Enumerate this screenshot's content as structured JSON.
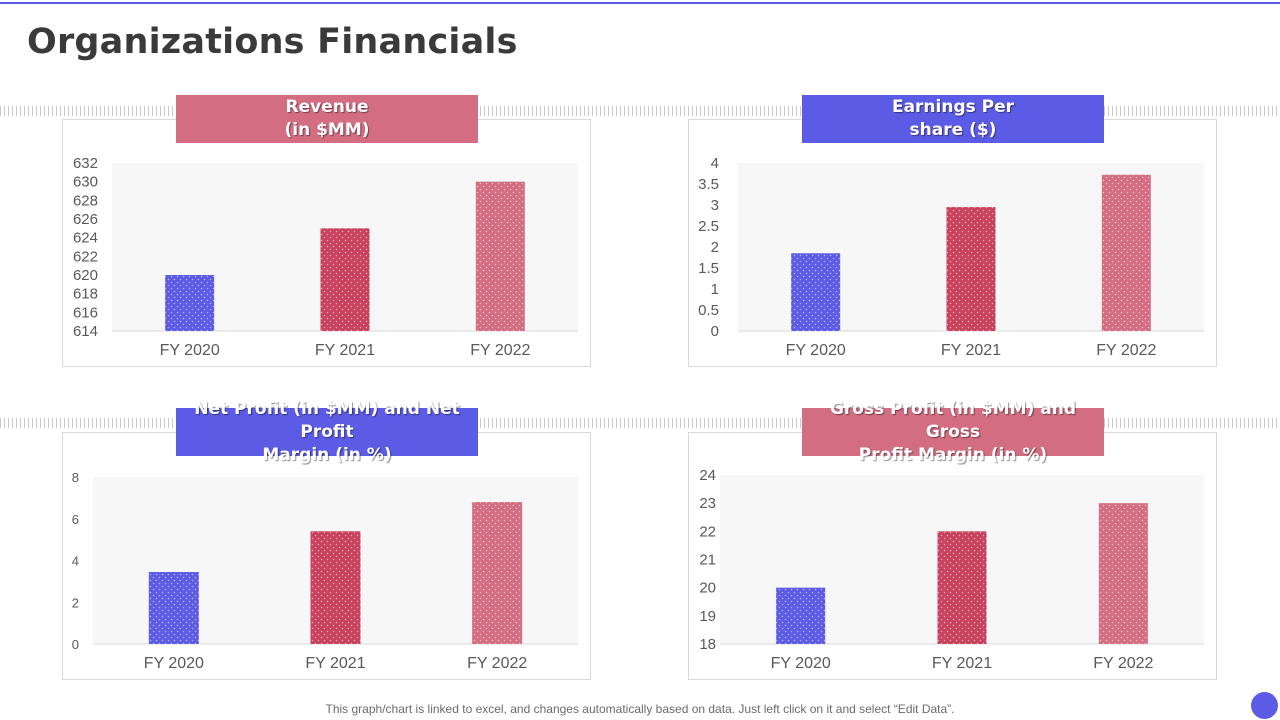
{
  "page": {
    "title": "Organizations Financials",
    "footnote": "This graph/chart is linked to excel, and changes automatically based on data. Just left click on it and select “Edit Data”.",
    "colors": {
      "accent_blue": "#5b5be6",
      "accent_rose": "#d36d82",
      "bar_2021": "#c8415d",
      "bar_2022": "#d36d82",
      "rule": "#5b5be6",
      "text": "#3a3a3a"
    }
  },
  "chart_data": [
    {
      "type": "bar",
      "title": "Revenue\n(in $MM)",
      "title_color": "#d36d82",
      "categories": [
        "FY 2020",
        "FY 2021",
        "FY 2022"
      ],
      "values": [
        620,
        625,
        630
      ],
      "ylim": [
        614,
        632
      ],
      "yticks": [
        614,
        616,
        618,
        620,
        622,
        624,
        626,
        628,
        630,
        632
      ],
      "ytick_labels": [
        "614",
        "616",
        "618",
        "620",
        "622",
        "624",
        "626",
        "628",
        "630",
        "632"
      ],
      "xlabel": "",
      "ylabel": "",
      "grid": false
    },
    {
      "type": "bar",
      "title": "Earnings Per\nshare ($)",
      "title_color": "#5b5be6",
      "categories": [
        "FY 2020",
        "FY 2021",
        "FY 2022"
      ],
      "values": [
        1.85,
        2.95,
        3.72
      ],
      "ylim": [
        0,
        4
      ],
      "yticks": [
        0,
        0.5,
        1,
        1.5,
        2,
        2.5,
        3,
        3.5,
        4
      ],
      "ytick_labels": [
        "0",
        "0.5",
        "1",
        "1.5",
        "2",
        "2.5",
        "3",
        "3.5",
        "4"
      ],
      "xlabel": "",
      "ylabel": "",
      "grid": false
    },
    {
      "type": "bar",
      "title": "Net Profit (in $MM) and Net Profit\nMargin (in %)",
      "title_color": "#5b5be6",
      "categories": [
        "FY 2020",
        "FY 2021",
        "FY 2022"
      ],
      "values": [
        3.45,
        5.4,
        6.8
      ],
      "ylim": [
        0,
        8
      ],
      "yticks": [
        0,
        2,
        4,
        6,
        8
      ],
      "ytick_labels": [
        "0",
        "2",
        "4",
        "6",
        "8"
      ],
      "xlabel": "",
      "ylabel": "",
      "grid": false
    },
    {
      "type": "bar",
      "title": "Gross Profit (in $MM) and Gross\nProfit Margin (in %)",
      "title_color": "#d36d82",
      "categories": [
        "FY 2020",
        "FY 2021",
        "FY 2022"
      ],
      "values": [
        20,
        22,
        23
      ],
      "ylim": [
        18,
        24
      ],
      "yticks": [
        18,
        19,
        20,
        21,
        22,
        23,
        24
      ],
      "ytick_labels": [
        "18",
        "19",
        "20",
        "21",
        "22",
        "23",
        "24"
      ],
      "xlabel": "",
      "ylabel": "",
      "grid": false
    }
  ]
}
